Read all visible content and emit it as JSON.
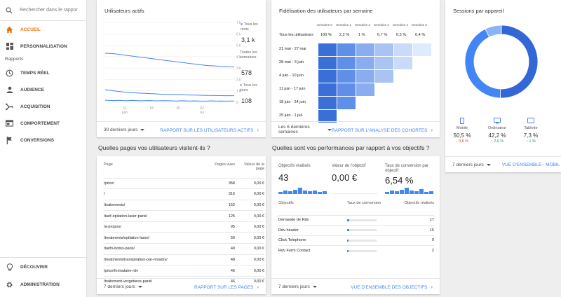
{
  "sidebar": {
    "search_placeholder": "Rechercher dans le rappor",
    "items": [
      {
        "label": "ACCUEIL",
        "icon": "home-icon"
      },
      {
        "label": "PERSONNALISATION",
        "icon": "dashboard-icon"
      }
    ],
    "section": "Rapports",
    "reports": [
      {
        "label": "TEMPS RÉEL",
        "icon": "clock-icon"
      },
      {
        "label": "AUDIENCE",
        "icon": "person-icon"
      },
      {
        "label": "ACQUISITION",
        "icon": "acquisition-icon"
      },
      {
        "label": "COMPORTEMENT",
        "icon": "behavior-icon"
      },
      {
        "label": "CONVERSIONS",
        "icon": "flag-icon"
      }
    ],
    "bottom": [
      {
        "label": "DÉCOUVRIR",
        "icon": "lightbulb-icon"
      },
      {
        "label": "ADMINISTRATION",
        "icon": "gear-icon"
      }
    ]
  },
  "active_users": {
    "title": "Utilisateurs actifs",
    "legend": [
      {
        "label": "Tous les mois",
        "value": "3,1 k"
      },
      {
        "label": "Toutes les semaines",
        "value": "578"
      },
      {
        "label": "Tous les jours",
        "value": "108"
      }
    ],
    "footer_range": "30 derniers jours",
    "footer_link": "RAPPORT SUR LES UTILISATEURS ACTIFS",
    "chart_data": {
      "type": "line",
      "x_ticks": [
        "11 juin",
        "18",
        "25",
        "02 Jul"
      ],
      "y_ticks": [
        "7 k",
        "6 k",
        "5 k",
        "4 k",
        "3 k",
        "2 k",
        "1 k",
        "0"
      ],
      "ylim": [
        0,
        7000
      ],
      "x": [
        1,
        2,
        3,
        4,
        5,
        6,
        7,
        8,
        9,
        10,
        11,
        12,
        13,
        14,
        15,
        16,
        17,
        18,
        19,
        20,
        21,
        22,
        23,
        24,
        25,
        26,
        27,
        28,
        29,
        30
      ],
      "series": [
        {
          "name": "Tous les mois",
          "values": [
            4300,
            4280,
            4260,
            4200,
            4150,
            4100,
            4050,
            4000,
            3950,
            3900,
            3850,
            3800,
            3750,
            3700,
            3650,
            3600,
            3550,
            3500,
            3450,
            3400,
            3350,
            3300,
            3260,
            3220,
            3200,
            3180,
            3150,
            3130,
            3110,
            3100
          ]
        },
        {
          "name": "Toutes les semaines",
          "values": [
            1100,
            1050,
            1000,
            950,
            900,
            880,
            850,
            820,
            800,
            780,
            760,
            740,
            720,
            700,
            690,
            680,
            670,
            660,
            650,
            640,
            630,
            620,
            610,
            600,
            595,
            590,
            585,
            580,
            578,
            578
          ]
        },
        {
          "name": "Tous les jours",
          "values": [
            180,
            160,
            150,
            170,
            150,
            140,
            160,
            150,
            130,
            140,
            150,
            130,
            120,
            140,
            130,
            120,
            110,
            130,
            120,
            110,
            120,
            110,
            100,
            110,
            120,
            100,
            110,
            100,
            110,
            108
          ]
        }
      ]
    }
  },
  "cohort": {
    "title": "Fidélisation des utilisateurs par semaine",
    "headers": [
      "Semaine 0",
      "Semaine 1",
      "Semaine 2",
      "Semaine 3",
      "Semaine 4",
      "Semaine 5"
    ],
    "all_label": "Tous les utilisateurs",
    "all_values": [
      "100 %",
      "2,2 %",
      "1 %",
      "0,7 %",
      "0,5 %",
      "0,4 %"
    ],
    "rows": [
      {
        "label": "21 mai - 27 mai",
        "cells": 6
      },
      {
        "label": "28 mai - 3 juin",
        "cells": 5
      },
      {
        "label": "4 juin - 10 juin",
        "cells": 4
      },
      {
        "label": "11 juin - 17 juin",
        "cells": 3
      },
      {
        "label": "18 juin - 24 juin",
        "cells": 2
      },
      {
        "label": "25 juin - 1 juil.",
        "cells": 1
      }
    ],
    "footer_range": "Les 6 dernières semaines",
    "footer_link": "RAPPORT SUR L'ANALYSE DES COHORTES"
  },
  "sessions": {
    "title": "Sessions par appareil",
    "chart_data": {
      "type": "pie",
      "categories": [
        "Mobile",
        "Ordinateur",
        "Tablette"
      ],
      "values": [
        50.5,
        42.2,
        7.3
      ]
    },
    "devices": [
      {
        "label": "Mobile",
        "value": "50,5 %",
        "change": "↓ 3,6 %",
        "color": "#db4437",
        "icon": "mobile-icon"
      },
      {
        "label": "Ordinateur",
        "value": "42,2 %",
        "change": "↑ 2,6 %",
        "color": "#0f9d58",
        "icon": "desktop-icon"
      },
      {
        "label": "Tablette",
        "value": "7,3 %",
        "change": "↑ 1 %",
        "color": "#0f9d58",
        "icon": "tablet-icon"
      }
    ],
    "footer_range": "7 derniers jours",
    "footer_link": "VUE D'ENSEMBLE - MOBIL"
  },
  "pages_heading": "Quelles pages vos utilisateurs visitent-ils ?",
  "pages": {
    "headers": [
      "Page",
      "Pages vues",
      "Valeur de la page"
    ],
    "rows": [
      [
        "/price/",
        "358",
        "0,00 €"
      ],
      [
        "/",
        "316",
        "0,00 €"
      ],
      [
        "/traitements/",
        "152",
        "0,00 €"
      ],
      [
        "/tarif-epilation-laser-paris/",
        "125",
        "0,00 €"
      ],
      [
        "/a-propos/",
        "95",
        "0,00 €"
      ],
      [
        "/treatments/epilation-laser/",
        "59",
        "0,00 €"
      ],
      [
        "/tarifs-botox-paris/",
        "49",
        "0,00 €"
      ],
      [
        "/treatments/transpiration-par-miradry/",
        "48",
        "0,00 €"
      ],
      [
        "/price/formulaire-rdv",
        "46",
        "0,00 €"
      ],
      [
        "/traitement-vergetures-paris/",
        "46",
        "0,00 €"
      ]
    ],
    "footer_range": "7 derniers jours",
    "footer_link": "RAPPORT SUR LES PAGES"
  },
  "goals_heading": "Quelles sont vos performances par rapport à vos objectifs ?",
  "goals": {
    "metrics": [
      {
        "label": "Objectifs réalisés",
        "value": "43"
      },
      {
        "label": "Valeur de l'objectif",
        "value": "0,00 €"
      },
      {
        "label": "Taux de conversion par objectif",
        "value": "6,54 %"
      }
    ],
    "headers": [
      "Objectifs",
      "Taux de conversion",
      "Objectifs réalisés"
    ],
    "rows": [
      {
        "name": "Demande de Rdv",
        "rate": 0.08,
        "count": "17"
      },
      {
        "name": "Rdv header",
        "rate": 0.07,
        "count": "15"
      },
      {
        "name": "Click Telephone",
        "rate": 0.05,
        "count": "9"
      },
      {
        "name": "Rdv Form Contact",
        "rate": 0.02,
        "count": "2"
      }
    ],
    "footer_range": "7 derniers jours",
    "footer_link": "VUE D'ENSEMBLE DES OBJECTIFS"
  }
}
